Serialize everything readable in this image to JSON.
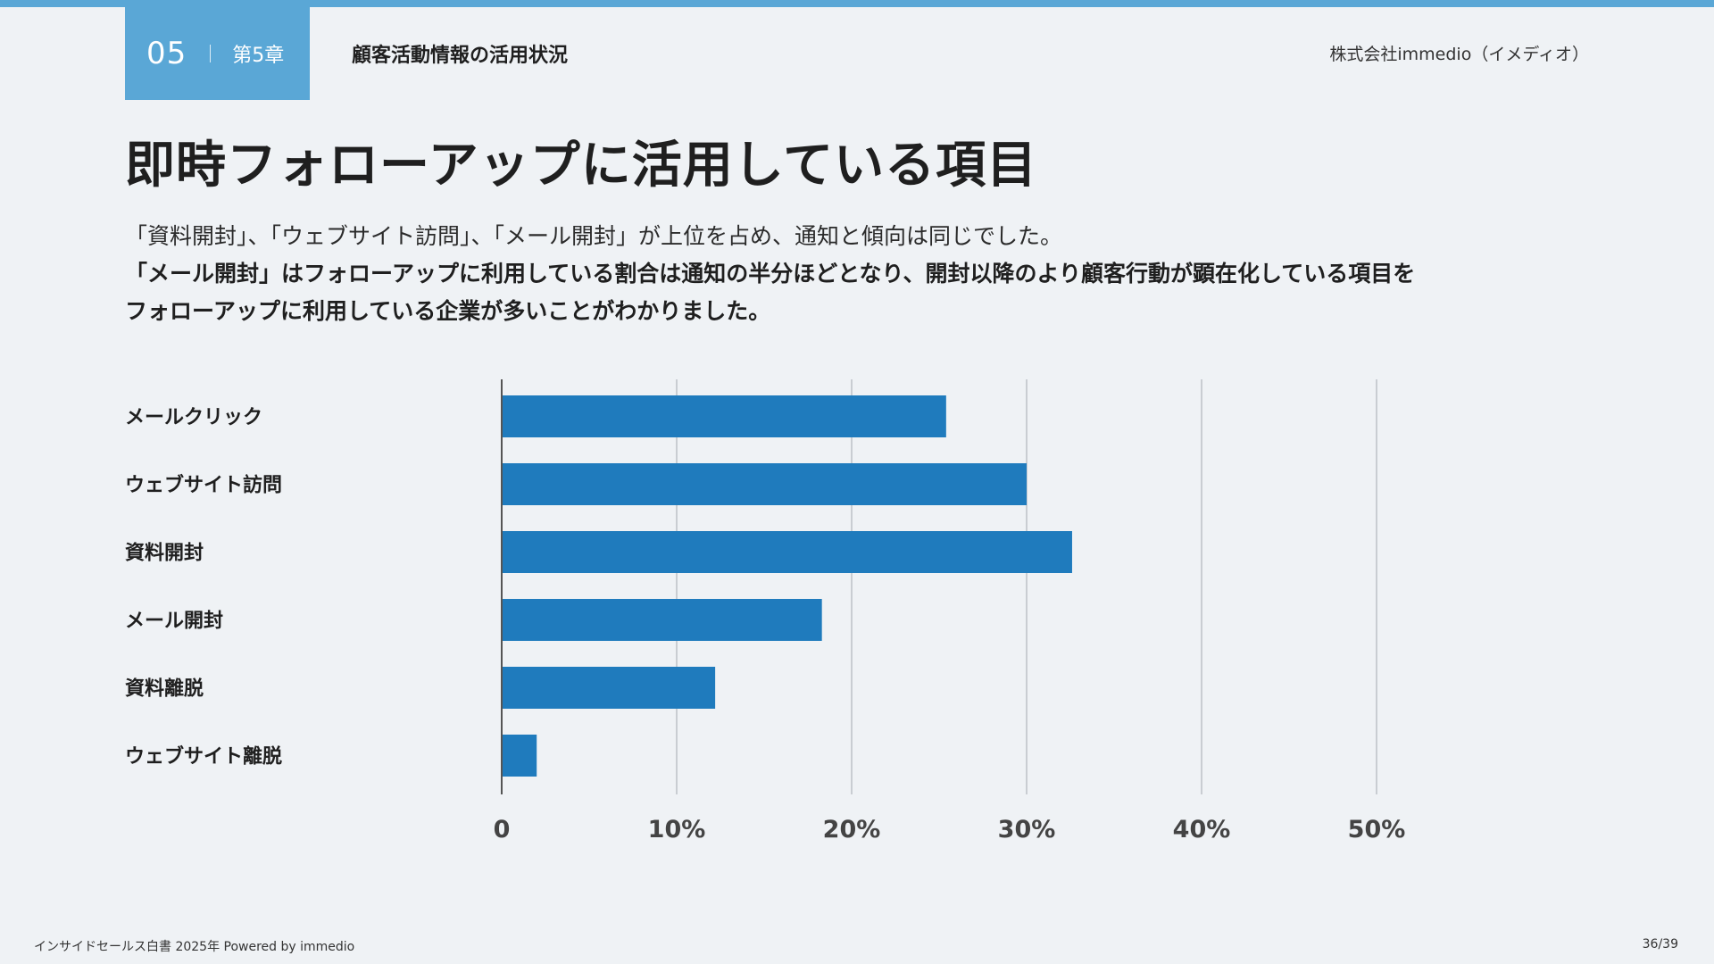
{
  "header": {
    "chapter_num": "05",
    "chapter_label": "第5章",
    "section_title": "顧客活動情報の活用状況",
    "company": "株式会社immedio（イメディオ）"
  },
  "title": "即時フォローアップに活用している項目",
  "lead": {
    "line1": "「資料開封」、「ウェブサイト訪問」、「メール開封」が上位を占め、通知と傾向は同じでした。",
    "line2": "「メール開封」はフォローアップに利用している割合は通知の半分ほどとなり、開封以降のより顧客行動が顕在化している項目を",
    "line3": "フォローアップに利用している企業が多いことがわかりました。"
  },
  "footer": {
    "left": "インサイドセールス白書 2025年 Powered by immedio",
    "right": "36/39"
  },
  "colors": {
    "accent": "#5aa7d6",
    "bar": "#1f7bbd"
  },
  "chart_data": {
    "type": "bar",
    "orientation": "horizontal",
    "categories": [
      "メールクリック",
      "ウェブサイト訪問",
      "資料開封",
      "メール開封",
      "資料離脱",
      "ウェブサイト離脱"
    ],
    "values": [
      25.4,
      30.0,
      32.6,
      18.3,
      12.2,
      2.0
    ],
    "unit": "%",
    "xlim": [
      0,
      50
    ],
    "xticks": [
      0,
      10,
      20,
      30,
      40,
      50
    ],
    "xtick_labels": [
      "0",
      "10%",
      "20%",
      "30%",
      "40%",
      "50%"
    ],
    "grid": true,
    "legend": "none"
  }
}
